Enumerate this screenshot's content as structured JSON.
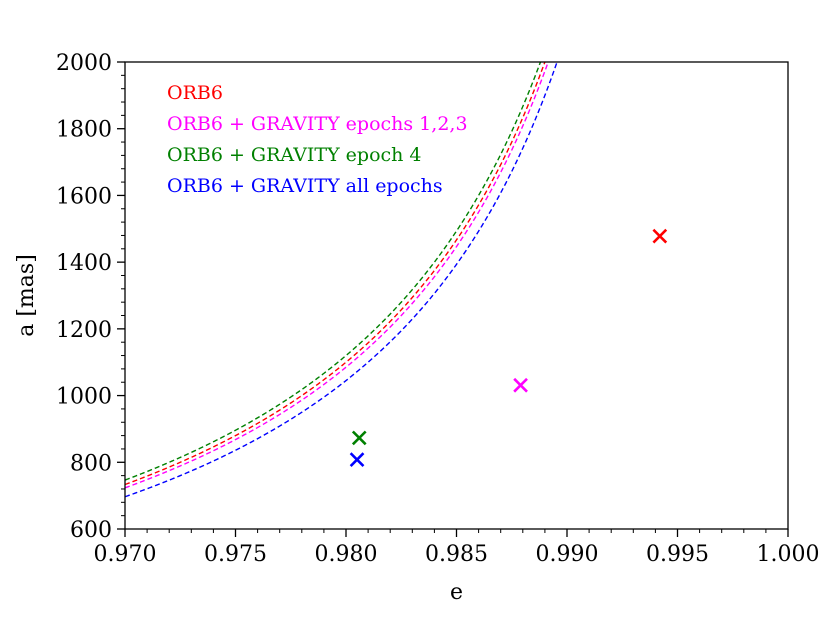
{
  "chart_data": {
    "type": "line",
    "title": "",
    "xlabel": "e",
    "ylabel": "a [mas]",
    "xlim": [
      0.97,
      1.0
    ],
    "ylim": [
      600,
      2000
    ],
    "x_ticks": [
      0.97,
      0.975,
      0.98,
      0.985,
      0.99,
      0.995,
      1.0
    ],
    "x_tick_labels": [
      "0.970",
      "0.975",
      "0.980",
      "0.985",
      "0.990",
      "0.995",
      "1.000"
    ],
    "y_ticks": [
      600,
      800,
      1000,
      1200,
      1400,
      1600,
      1800,
      2000
    ],
    "y_tick_labels": [
      "600",
      "800",
      "1000",
      "1200",
      "1400",
      "1600",
      "1800",
      "2000"
    ],
    "legend_position": "top-left",
    "series": [
      {
        "name": "ORB6",
        "color": "#ff0000",
        "line_style": "dashed",
        "curve": {
          "form": "a = k / (1 - e)",
          "k": 22.0
        },
        "marker": {
          "symbol": "x",
          "e": 0.9942,
          "a": 1478
        }
      },
      {
        "name": "ORB6 + GRAVITY epochs 1,2,3",
        "color": "#ff00ff",
        "line_style": "dashed",
        "curve": {
          "form": "a = k / (1 - e)",
          "k": 21.7
        },
        "marker": {
          "symbol": "x",
          "e": 0.9879,
          "a": 1031
        }
      },
      {
        "name": "ORB6 + GRAVITY epoch 4",
        "color": "#008000",
        "line_style": "dashed",
        "curve": {
          "form": "a = k / (1 - e)",
          "k": 22.4
        },
        "marker": {
          "symbol": "x",
          "e": 0.9806,
          "a": 873
        }
      },
      {
        "name": "ORB6 + GRAVITY all epochs",
        "color": "#0000ff",
        "line_style": "dashed",
        "curve": {
          "form": "a = k / (1 - e)",
          "k": 20.9
        },
        "marker": {
          "symbol": "x",
          "e": 0.9805,
          "a": 808
        }
      }
    ]
  }
}
